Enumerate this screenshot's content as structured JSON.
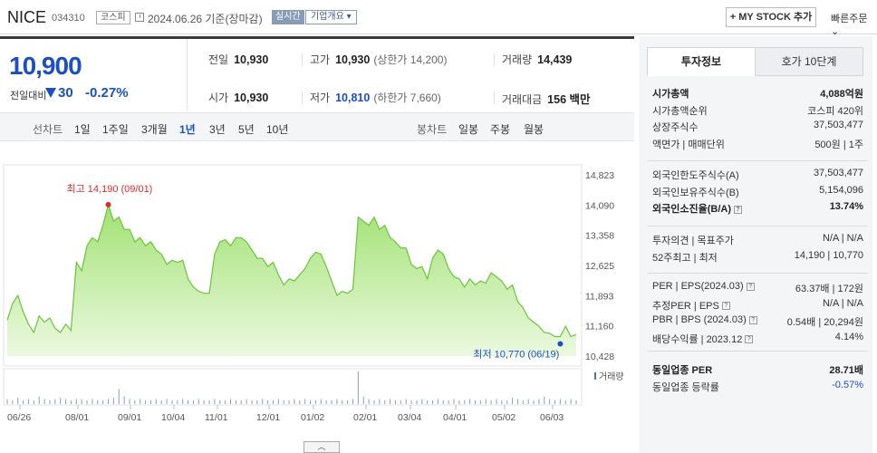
{
  "header": {
    "name": "NICE",
    "code": "034310",
    "market": "코스피",
    "date_text": "2024.06.26 기준(장마감)",
    "realtime": "실시간",
    "company_info": "기업개요 ▾",
    "mystock": "+ MY STOCK 추가",
    "quick_order": "빠른주문 ⌄"
  },
  "price": {
    "current": "10,900",
    "change_label": "전일대비",
    "change": "30",
    "change_pct": "-0.27%",
    "prev_label": "전일",
    "prev": "10,930",
    "high_label": "고가",
    "high": "10,930",
    "upper_limit": "(상한가 14,200)",
    "volume_label": "거래량",
    "volume": "14,439",
    "open_label": "시가",
    "open": "10,930",
    "low_label": "저가",
    "low": "10,810",
    "lower_limit": "(하한가 7,660)",
    "amount_label": "거래대금",
    "amount": "156 백만"
  },
  "periods": {
    "line_label": "선차트",
    "line_items": [
      "1일",
      "1주일",
      "3개월",
      "1년",
      "3년",
      "5년",
      "10년"
    ],
    "active": "1년",
    "candle_label": "봉차트",
    "candle_items": [
      "일봉",
      "주봉",
      "월봉"
    ]
  },
  "chart_data": {
    "type": "area",
    "y_ticks": [
      "14,823",
      "14,090",
      "13,358",
      "12,625",
      "11,893",
      "11,160",
      "10,428"
    ],
    "ylim": [
      10428,
      14823
    ],
    "x_ticks": [
      "06/26",
      "08/01",
      "09/01",
      "10/04",
      "11/01",
      "12/01",
      "01/02",
      "02/01",
      "03/04",
      "04/01",
      "05/02",
      "06/03"
    ],
    "max_label": "최고 14,190 (09/01)",
    "min_label": "최저 10,770 (06/19)",
    "volume_label": "거래량",
    "values": [
      11300,
      11700,
      11900,
      11500,
      11200,
      11000,
      11400,
      11250,
      11350,
      11100,
      11000,
      11200,
      11050,
      12700,
      12500,
      13100,
      13300,
      13200,
      13600,
      14100,
      13700,
      13800,
      13500,
      13500,
      13200,
      13300,
      13100,
      13200,
      13000,
      12900,
      12650,
      12750,
      12700,
      12750,
      12300,
      12100,
      12000,
      11950,
      11950,
      12900,
      13200,
      13250,
      13100,
      13300,
      13300,
      13200,
      13000,
      12800,
      12800,
      12600,
      12700,
      12400,
      12150,
      12300,
      12250,
      12400,
      12550,
      12800,
      12950,
      12900,
      12600,
      12250,
      11900,
      12000,
      11950,
      12050,
      13800,
      13700,
      13600,
      13800,
      13500,
      13600,
      13300,
      13200,
      13050,
      13050,
      12650,
      12550,
      12600,
      12300,
      12800,
      13000,
      12900,
      12550,
      12350,
      12300,
      12100,
      12300,
      12150,
      12250,
      12200,
      12450,
      12350,
      12250,
      12050,
      12150,
      11750,
      11600,
      11350,
      11250,
      11150,
      11000,
      10980,
      10900,
      10900,
      11150,
      10900,
      10950
    ],
    "volumes": [
      4,
      3,
      5,
      3,
      4,
      3,
      6,
      4,
      3,
      4,
      5,
      4,
      3,
      4,
      4,
      3,
      4,
      3,
      3,
      4,
      5,
      12,
      6,
      4,
      3,
      4,
      3,
      3,
      4,
      3,
      4,
      3,
      3,
      4,
      3,
      3,
      4,
      3,
      3,
      4,
      3,
      3,
      4,
      3,
      3,
      4,
      3,
      3,
      4,
      3,
      3,
      4,
      3,
      3,
      4,
      3,
      4,
      3,
      3,
      4,
      3,
      3,
      4,
      3,
      3,
      4,
      26,
      6,
      4,
      3,
      4,
      3,
      4,
      3,
      3,
      4,
      3,
      3,
      4,
      3,
      3,
      4,
      3,
      3,
      4,
      3,
      3,
      4,
      3,
      3,
      4,
      3,
      4,
      3,
      3,
      5,
      4,
      3,
      4,
      3,
      4,
      6,
      4,
      3,
      4,
      3,
      4,
      3
    ]
  },
  "side": {
    "tabs": [
      "투자정보",
      "호가 10단계"
    ],
    "rows1": [
      {
        "label": "시가총액",
        "value": "4,088억원",
        "strong": true
      },
      {
        "label": "시가총액순위",
        "value": "코스피 420위"
      },
      {
        "label": "상장주식수",
        "value": "37,503,477"
      },
      {
        "label": "액면가 | 매매단위",
        "value": "500원 | 1주"
      }
    ],
    "rows2": [
      {
        "label": "외국인한도주식수(A)",
        "value": "37,503,477"
      },
      {
        "label": "외국인보유주식수(B)",
        "value": "5,154,096"
      },
      {
        "label": "외국인소진율(B/A)",
        "value": "13.74%",
        "strong": true
      }
    ],
    "rows3": [
      {
        "label": "투자의견 | 목표주가",
        "value": "N/A | N/A"
      },
      {
        "label": "52주최고 | 최저",
        "value": "14,190 | 10,770"
      }
    ],
    "rows4": [
      {
        "label": "PER | EPS(2024.03)",
        "value": "63.37배 | 172원"
      },
      {
        "label": "추정PER | EPS",
        "value": "N/A | N/A"
      },
      {
        "label": "PBR | BPS (2024.03)",
        "value": "0.54배 | 20,294원"
      },
      {
        "label": "배당수익률 | 2023.12",
        "value": "4.14%"
      }
    ],
    "rows5": [
      {
        "label": "동일업종 PER",
        "value": "28.71배",
        "strong": true
      },
      {
        "label": "동일업종 등락률",
        "value": "-0.57%",
        "blue": true
      }
    ]
  },
  "collapse": "︿"
}
